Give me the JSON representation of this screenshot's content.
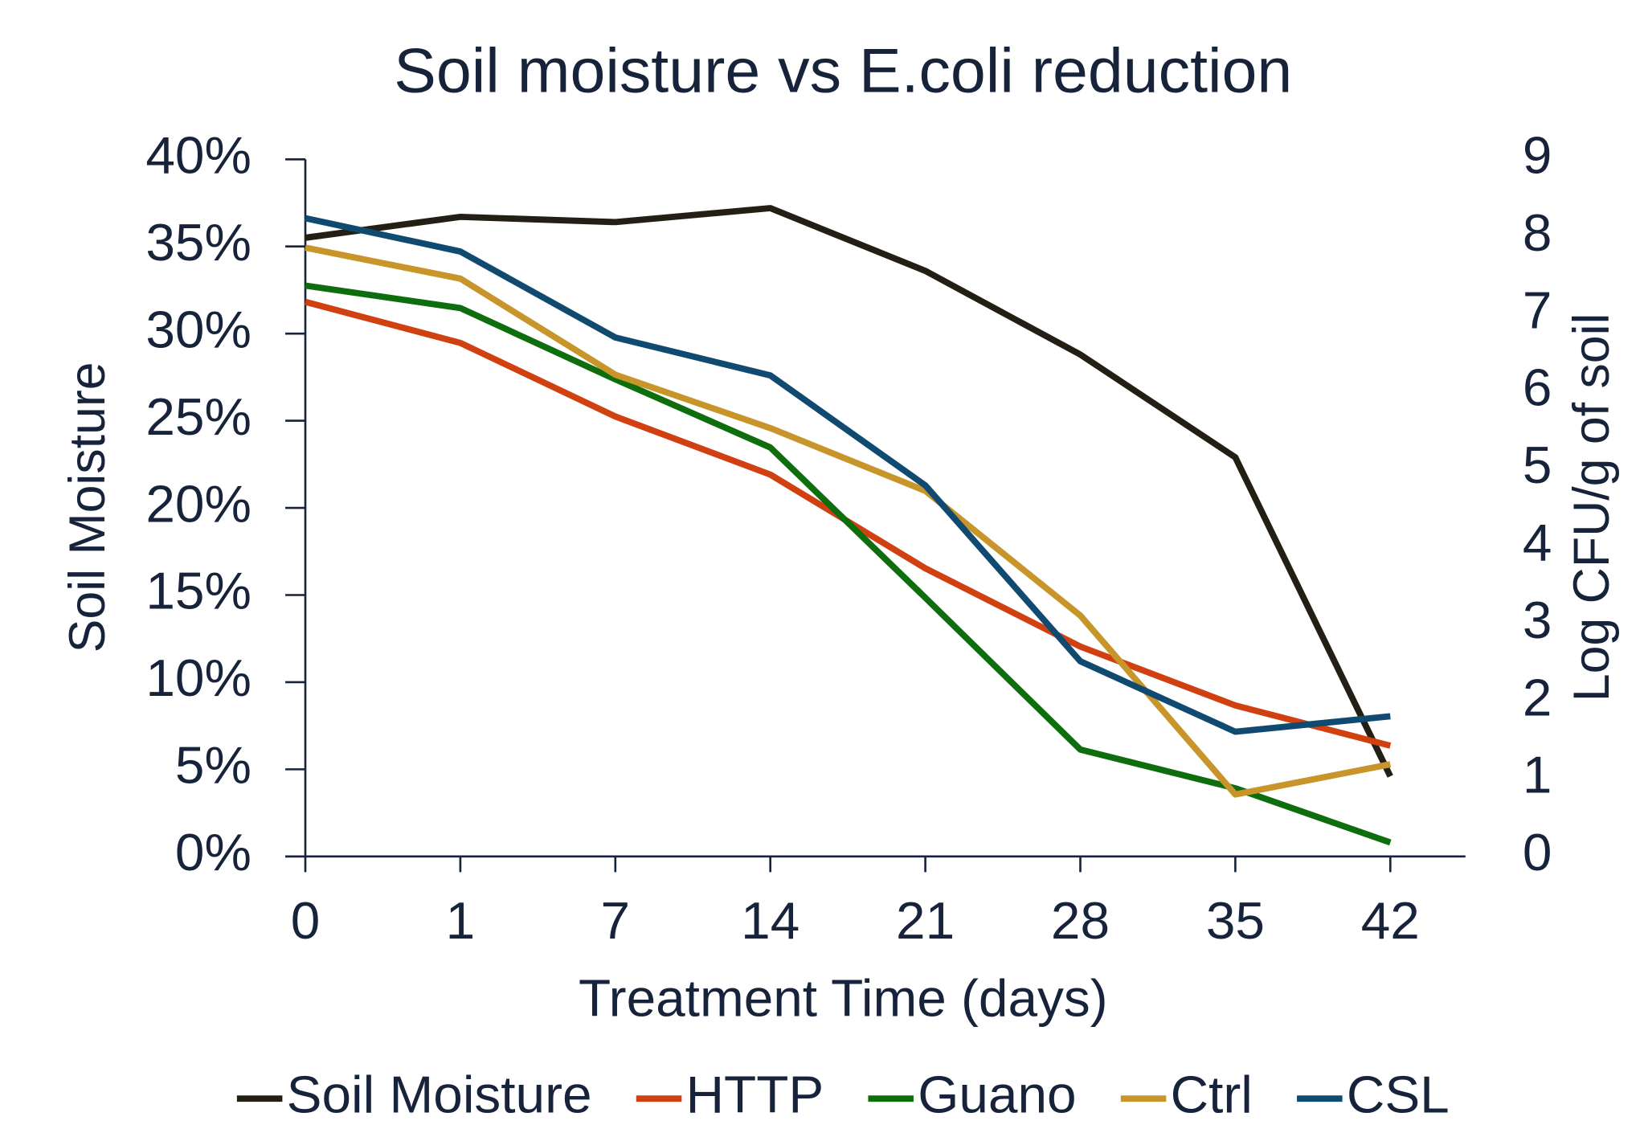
{
  "chart_data": {
    "type": "line",
    "title": "Soil moisture vs E.coli reduction",
    "xlabel": "Treatment Time (days)",
    "ylabel": "Soil Moisture",
    "y2label": "Log CFU/g of soil",
    "categories": [
      "0",
      "1",
      "7",
      "14",
      "21",
      "28",
      "35",
      "42"
    ],
    "ylim": [
      0,
      40
    ],
    "yticks": [
      {
        "value": 0,
        "label": "0%"
      },
      {
        "value": 5,
        "label": "5%"
      },
      {
        "value": 10,
        "label": "10%"
      },
      {
        "value": 15,
        "label": "15%"
      },
      {
        "value": 20,
        "label": "20%"
      },
      {
        "value": 25,
        "label": "25%"
      },
      {
        "value": 30,
        "label": "30%"
      },
      {
        "value": 35,
        "label": "35%"
      },
      {
        "value": 40,
        "label": "40%"
      }
    ],
    "y2lim": [
      0,
      9
    ],
    "y2ticks": [
      0,
      1,
      2,
      3,
      4,
      5,
      6,
      7,
      8,
      9
    ],
    "legend": "bottom",
    "series": [
      {
        "name": "Soil Moisture",
        "color": "#231f14",
        "values": [
          35.5,
          36.7,
          36.4,
          37.2,
          33.6,
          28.8,
          22.9,
          4.6
        ]
      },
      {
        "name": "HTTP",
        "color": "#d04010",
        "axis": "y2",
        "values": [
          7.16,
          6.63,
          5.68,
          4.93,
          3.72,
          2.71,
          1.95,
          1.43
        ]
      },
      {
        "name": "Guano",
        "color": "#0e6e0e",
        "axis": "y2",
        "values": [
          7.37,
          7.08,
          6.16,
          5.28,
          3.34,
          1.38,
          0.88,
          0.18
        ]
      },
      {
        "name": "Ctrl",
        "color": "#c8952a",
        "axis": "y2",
        "values": [
          7.86,
          7.46,
          6.22,
          5.53,
          4.72,
          3.11,
          0.8,
          1.19
        ]
      },
      {
        "name": "CSL",
        "color": "#104a70",
        "axis": "y2",
        "values": [
          8.24,
          7.81,
          6.7,
          6.21,
          4.79,
          2.52,
          1.61,
          1.81
        ]
      }
    ]
  }
}
